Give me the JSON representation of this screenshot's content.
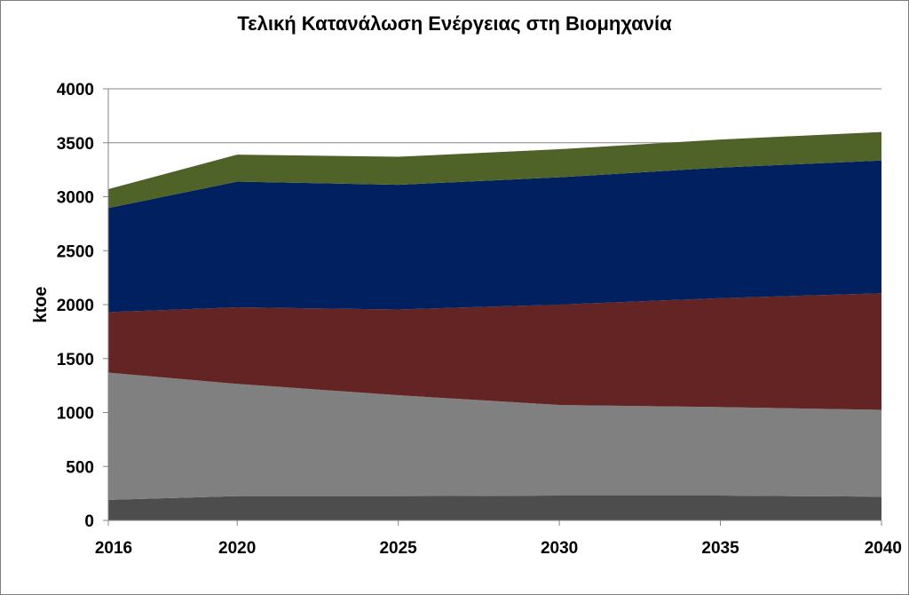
{
  "chart_data": {
    "type": "area",
    "stacked": true,
    "title": "Τελική Κατανάλωση Ενέργειας στη Βιομηχανία",
    "ylabel": "ktoe",
    "xlabel": "",
    "x": [
      2016,
      2020,
      2025,
      2030,
      2035,
      2040
    ],
    "ylim": [
      0,
      4000
    ],
    "yticks": [
      0,
      500,
      1000,
      1500,
      2000,
      2500,
      3000,
      3500,
      4000
    ],
    "grid": true,
    "legend": "none",
    "series": [
      {
        "color": "#4d4d4d",
        "values": [
          190,
          225,
          225,
          230,
          230,
          220
        ]
      },
      {
        "color": "#808080",
        "values": [
          1180,
          1040,
          935,
          840,
          820,
          805
        ]
      },
      {
        "color": "#632423",
        "values": [
          560,
          710,
          795,
          930,
          1010,
          1080
        ]
      },
      {
        "color": "#002060",
        "values": [
          965,
          1165,
          1155,
          1180,
          1210,
          1230
        ]
      },
      {
        "color": "#4f6228",
        "values": [
          175,
          250,
          260,
          260,
          260,
          265
        ]
      }
    ]
  }
}
